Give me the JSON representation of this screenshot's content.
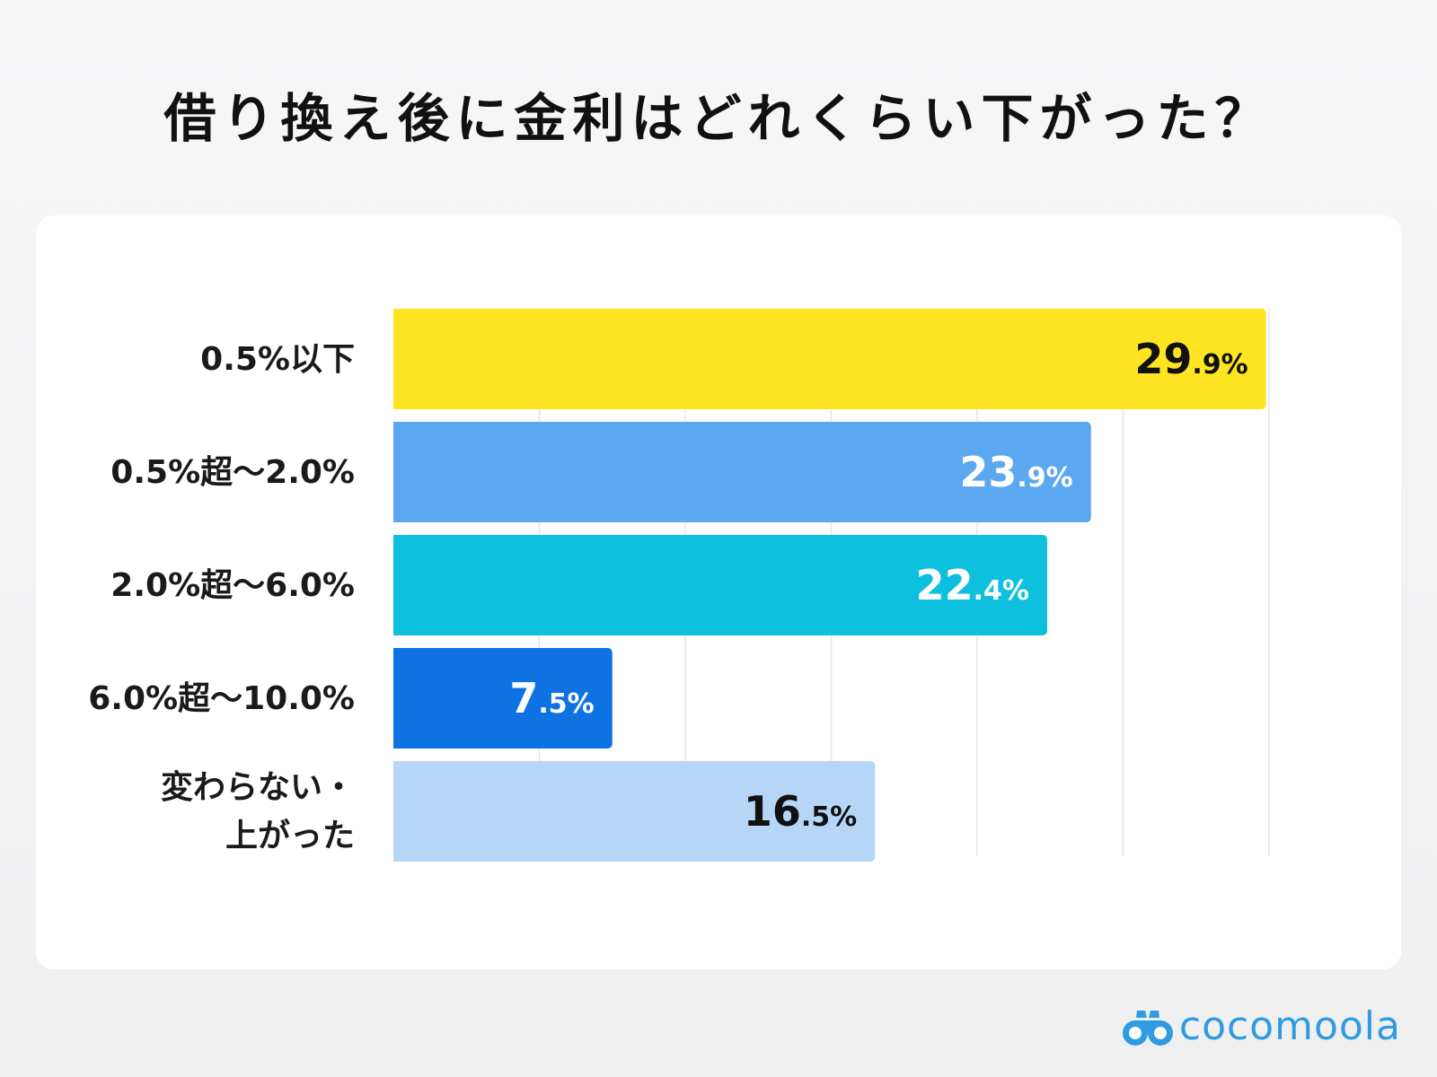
{
  "title": "借り換え後に金利はどれくらい下がった？",
  "brand": {
    "name": "cocomoola",
    "color": "#2f9be0",
    "icon": "binoculars-icon"
  },
  "chart_data": {
    "type": "bar",
    "orientation": "horizontal",
    "title": "借り換え後に金利はどれくらい下がった？",
    "xlabel": "",
    "ylabel": "",
    "xlim": [
      0,
      30
    ],
    "grid": true,
    "legend": "none",
    "unit": "%",
    "categories": [
      [
        "0.5%以下"
      ],
      [
        "0.5%超～2.0%"
      ],
      [
        "2.0%超～6.0%"
      ],
      [
        "6.0%超～10.0%"
      ],
      [
        "変わらない・",
        "上がった"
      ]
    ],
    "values": [
      29.9,
      23.9,
      22.4,
      7.5,
      16.5
    ],
    "colors": [
      "#ffe422",
      "#5ba8f0",
      "#0cc0de",
      "#0e72e2",
      "#b5d6f7"
    ],
    "label_colors": [
      "#111111",
      "#ffffff",
      "#ffffff",
      "#ffffff",
      "#111111"
    ]
  }
}
